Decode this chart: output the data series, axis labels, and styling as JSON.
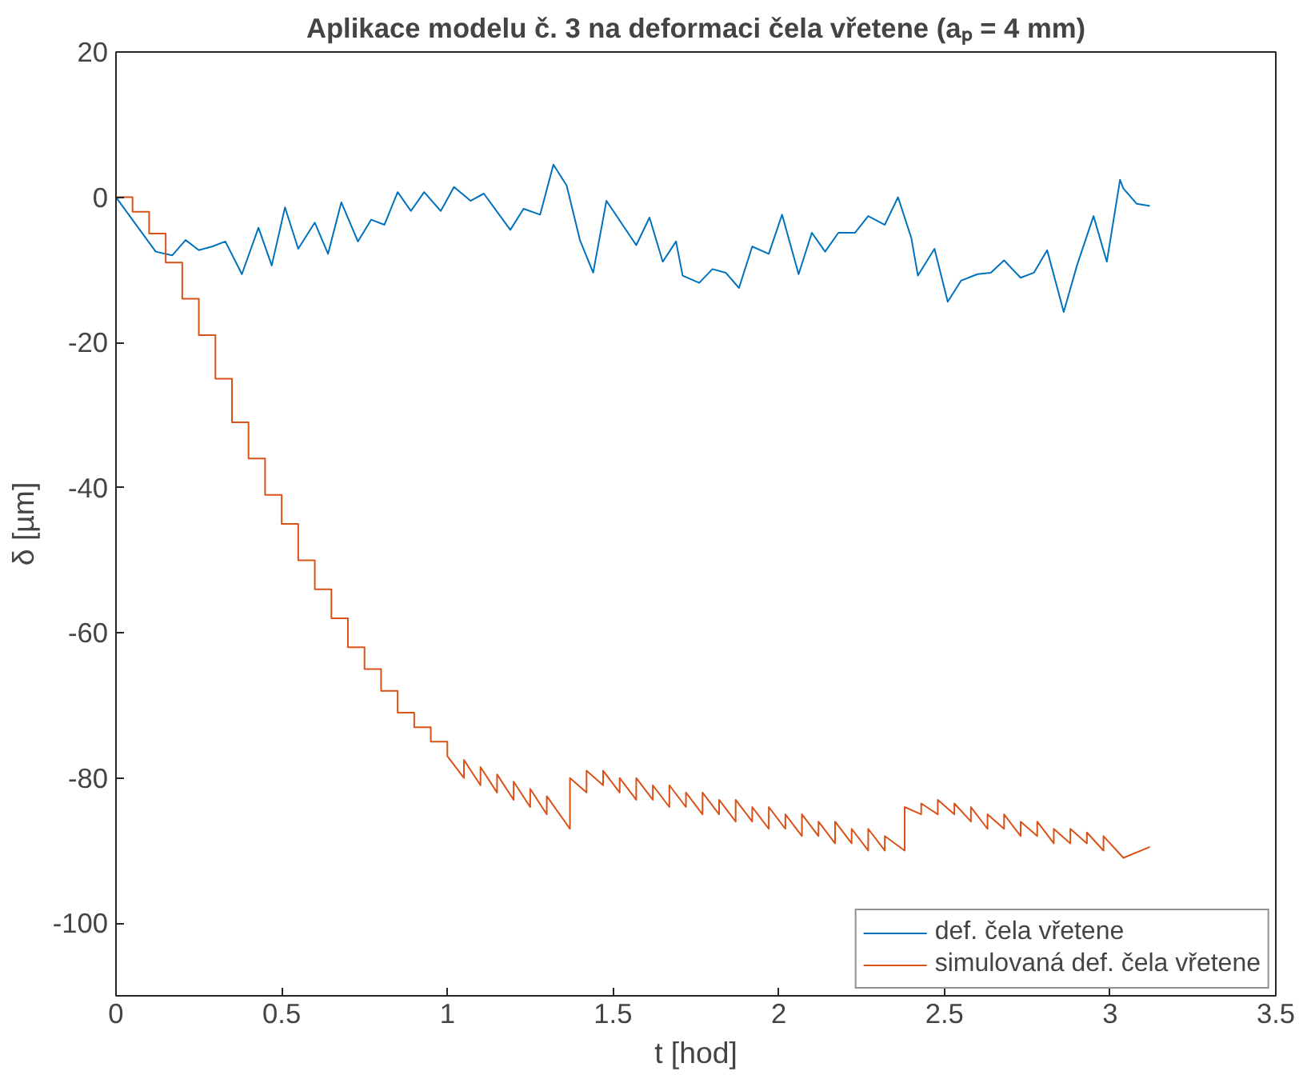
{
  "chart_data": {
    "type": "line",
    "title": "Aplikace modelu č. 3 na deformaci čela vřetene (aₚ = 4 mm)",
    "xlabel": "t [hod]",
    "ylabel": "δ [µm]",
    "xlim": [
      0,
      3.5
    ],
    "ylim": [
      -110,
      20
    ],
    "xticks": [
      0,
      0.5,
      1,
      1.5,
      2,
      2.5,
      3,
      3.5
    ],
    "yticks": [
      -100,
      -80,
      -60,
      -40,
      -20,
      0,
      20
    ],
    "grid": false,
    "legend": "bottom right",
    "line_style": "solid",
    "series": [
      {
        "name": "def. čela vřetene",
        "color": "#0072bd",
        "x": [
          0,
          0.12,
          0.17,
          0.21,
          0.25,
          0.29,
          0.33,
          0.38,
          0.43,
          0.47,
          0.51,
          0.55,
          0.6,
          0.64,
          0.68,
          0.73,
          0.77,
          0.81,
          0.85,
          0.89,
          0.93,
          0.98,
          1.02,
          1.07,
          1.11,
          1.19,
          1.23,
          1.28,
          1.32,
          1.36,
          1.4,
          1.44,
          1.48,
          1.57,
          1.61,
          1.65,
          1.69,
          1.71,
          1.76,
          1.8,
          1.84,
          1.88,
          1.92,
          1.97,
          2.01,
          2.06,
          2.1,
          2.14,
          2.18,
          2.23,
          2.27,
          2.32,
          2.36,
          2.4,
          2.42,
          2.47,
          2.51,
          2.55,
          2.6,
          2.64,
          2.68,
          2.73,
          2.77,
          2.81,
          2.86,
          2.9,
          2.95,
          2.99,
          3.03,
          3.04,
          3.08,
          3.12
        ],
        "values": [
          0,
          -7.5,
          -8,
          -5.9,
          -7.3,
          -6.8,
          -6.1,
          -10.6,
          -4.2,
          -9.4,
          -1.4,
          -7.1,
          -3.5,
          -7.8,
          -0.7,
          -6.1,
          -3.1,
          -3.8,
          0.7,
          -1.9,
          0.7,
          -1.9,
          1.4,
          -0.5,
          0.5,
          -4.5,
          -1.6,
          -2.4,
          4.5,
          1.6,
          -5.9,
          -10.4,
          -0.5,
          -6.6,
          -2.8,
          -8.9,
          -6.1,
          -10.8,
          -11.8,
          -9.9,
          -10.4,
          -12.5,
          -6.8,
          -7.8,
          -2.4,
          -10.6,
          -4.9,
          -7.5,
          -4.9,
          -4.9,
          -2.6,
          -3.8,
          0,
          -5.6,
          -10.8,
          -7.1,
          -14.4,
          -11.5,
          -10.6,
          -10.4,
          -8.7,
          -11.1,
          -10.4,
          -7.3,
          -15.8,
          -9.4,
          -2.6,
          -8.9,
          2.4,
          1.2,
          -0.9,
          -1.2
        ]
      },
      {
        "name": "simulovaná def. čela vřetene",
        "color": "#d95319",
        "x": [
          0,
          0.05,
          0.05,
          0.1,
          0.1,
          0.15,
          0.15,
          0.2,
          0.2,
          0.25,
          0.25,
          0.3,
          0.3,
          0.35,
          0.35,
          0.4,
          0.4,
          0.45,
          0.45,
          0.5,
          0.5,
          0.55,
          0.55,
          0.6,
          0.6,
          0.65,
          0.65,
          0.7,
          0.7,
          0.75,
          0.75,
          0.8,
          0.8,
          0.85,
          0.85,
          0.9,
          0.9,
          0.95,
          0.95,
          1.0,
          1.0,
          1.05,
          1.05,
          1.1,
          1.1,
          1.15,
          1.15,
          1.2,
          1.2,
          1.25,
          1.25,
          1.3,
          1.3,
          1.37,
          1.37,
          1.42,
          1.42,
          1.47,
          1.47,
          1.52,
          1.52,
          1.57,
          1.57,
          1.62,
          1.62,
          1.67,
          1.67,
          1.72,
          1.72,
          1.77,
          1.77,
          1.82,
          1.82,
          1.87,
          1.87,
          1.92,
          1.92,
          1.97,
          1.97,
          2.02,
          2.02,
          2.07,
          2.07,
          2.12,
          2.12,
          2.17,
          2.17,
          2.22,
          2.22,
          2.27,
          2.27,
          2.32,
          2.32,
          2.38,
          2.38,
          2.43,
          2.43,
          2.48,
          2.48,
          2.53,
          2.53,
          2.58,
          2.58,
          2.63,
          2.63,
          2.68,
          2.68,
          2.73,
          2.73,
          2.78,
          2.78,
          2.83,
          2.83,
          2.88,
          2.88,
          2.93,
          2.93,
          2.98,
          2.98,
          3.04,
          3.12
        ],
        "values": [
          0,
          0,
          -2,
          -2,
          -5,
          -5,
          -9,
          -9,
          -14,
          -14,
          -19,
          -19,
          -25,
          -25,
          -31,
          -31,
          -36,
          -36,
          -41,
          -41,
          -45,
          -45,
          -50,
          -50,
          -54,
          -54,
          -58,
          -58,
          -62,
          -62,
          -65,
          -65,
          -68,
          -68,
          -71,
          -71,
          -73,
          -73,
          -75,
          -75,
          -77,
          -80,
          -77.5,
          -81,
          -78.5,
          -82,
          -79.5,
          -83,
          -80.5,
          -84,
          -81.5,
          -85,
          -82.5,
          -87,
          -80,
          -82,
          -79,
          -81,
          -79,
          -82,
          -80,
          -83,
          -80,
          -83,
          -81,
          -84,
          -81,
          -84,
          -82,
          -85,
          -82,
          -85,
          -83,
          -86,
          -83,
          -86,
          -84,
          -87,
          -84,
          -87,
          -85,
          -88,
          -85,
          -88,
          -86,
          -89,
          -86,
          -89,
          -87,
          -90,
          -87,
          -90,
          -88,
          -90,
          -84,
          -85,
          -83.5,
          -85,
          -83,
          -85,
          -83.5,
          -86,
          -84,
          -87,
          -85,
          -87,
          -85,
          -88,
          -86,
          -88,
          -86,
          -89,
          -87,
          -89,
          -87,
          -89,
          -87.5,
          -90,
          -88,
          -91,
          -89.5
        ]
      }
    ]
  }
}
